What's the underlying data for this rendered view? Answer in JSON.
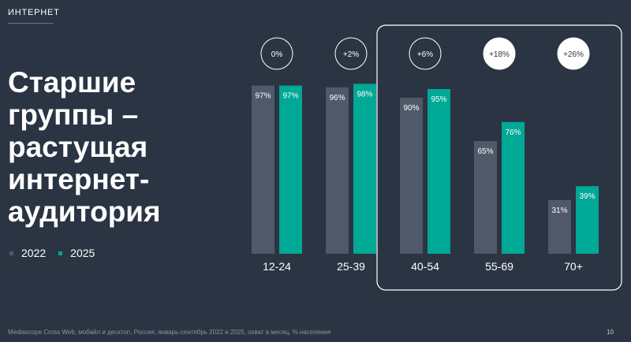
{
  "header": {
    "section": "ИНТЕРНЕТ"
  },
  "headline": [
    "Старшие",
    "группы –",
    "растущая",
    "интернет-",
    "аудитория"
  ],
  "legend": [
    {
      "label": "2022",
      "color": "#4f5969"
    },
    {
      "label": "2025",
      "color": "#00a896"
    }
  ],
  "chart_data": {
    "type": "bar",
    "categories": [
      "12-24",
      "25-39",
      "40-54",
      "55-69",
      "70+"
    ],
    "series": [
      {
        "name": "2022",
        "color": "#4f5969",
        "values": [
          97,
          96,
          90,
          65,
          31
        ],
        "labels": [
          "97%",
          "96%",
          "90%",
          "65%",
          "31%"
        ]
      },
      {
        "name": "2025",
        "color": "#00a896",
        "values": [
          97,
          98,
          95,
          76,
          39
        ],
        "labels": [
          "97%",
          "98%",
          "95%",
          "76%",
          "39%"
        ]
      }
    ],
    "changes": [
      "0%",
      "+2%",
      "+6%",
      "+18%",
      "+26%"
    ],
    "highlighted_changes": [
      false,
      false,
      false,
      true,
      true
    ],
    "highlighted_categories": [
      "40-54",
      "55-69",
      "70+"
    ],
    "ylim": [
      0,
      100
    ],
    "grid": false,
    "legend_position": "bottom-left"
  },
  "footer": {
    "source": "Mediascope Cross Web, мобайл и десктоп, Россия, январь-сентябрь 2022 и 2025, охват в месяц, % населения",
    "page": "10"
  }
}
